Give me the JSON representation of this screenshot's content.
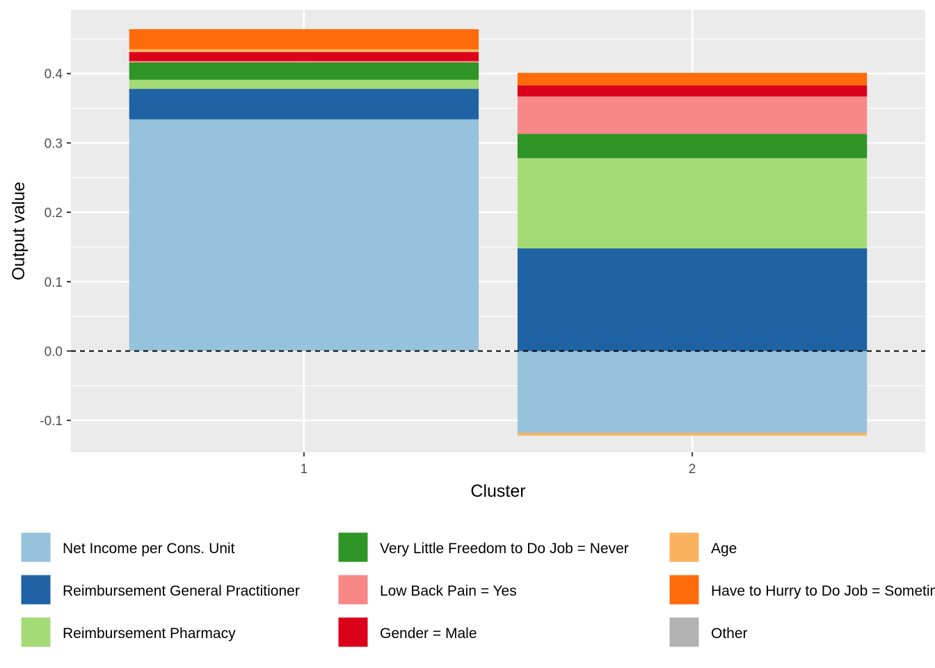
{
  "chart_data": {
    "type": "bar",
    "stacked": true,
    "title": "",
    "xlabel": "Cluster",
    "ylabel": "Output value",
    "categories": [
      "1",
      "2"
    ],
    "ylim": [
      -0.146,
      0.492
    ],
    "yticks": [
      -0.1,
      0.0,
      0.1,
      0.2,
      0.3,
      0.4
    ],
    "ytick_labels": [
      "-0.1",
      "0.0",
      "0.1",
      "0.2",
      "0.3",
      "0.4"
    ],
    "reference_line": {
      "y": 0,
      "style": "dashed"
    },
    "grid": true,
    "legend_position": "bottom",
    "series": [
      {
        "name": "Net Income per Cons. Unit",
        "color": "#97C2DB",
        "values": [
          0.334,
          -0.118
        ]
      },
      {
        "name": "Reimbursement General Practitioner",
        "color": "#1F63A5",
        "values": [
          0.044,
          0.148
        ]
      },
      {
        "name": "Reimbursement Pharmacy",
        "color": "#A5DB77",
        "values": [
          0.013,
          0.13
        ]
      },
      {
        "name": "Very Little Freedom to Do Job = Never",
        "color": "#2E9526",
        "values": [
          0.025,
          0.035
        ]
      },
      {
        "name": "Low Back Pain = Yes",
        "color": "#F88787",
        "values": [
          0.002,
          0.054
        ]
      },
      {
        "name": "Gender = Male",
        "color": "#DC011A",
        "values": [
          0.013,
          0.016
        ]
      },
      {
        "name": "Age",
        "color": "#FBB25F",
        "values": [
          0.004,
          -0.004
        ]
      },
      {
        "name": "Have to Hurry to Do Job = Sometimes",
        "color": "#FE6B0B",
        "values": [
          0.029,
          0.018
        ]
      },
      {
        "name": "Other",
        "color": "#B2B2B2",
        "values": [
          0.0,
          0.0
        ]
      }
    ]
  }
}
